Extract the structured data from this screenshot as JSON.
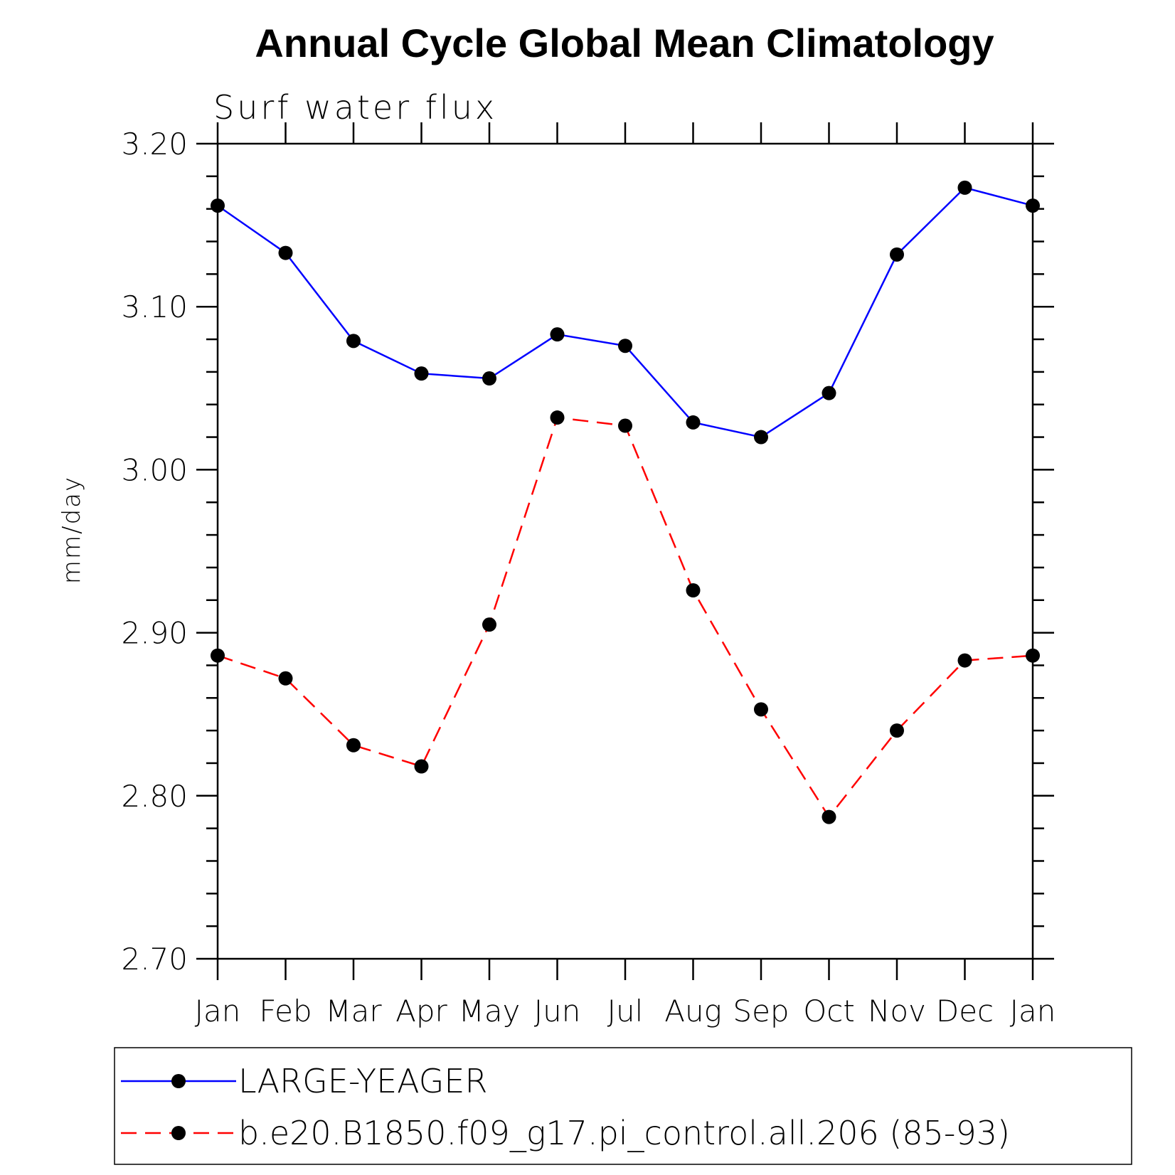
{
  "chart_data": {
    "type": "line",
    "title": "Annual Cycle Global Mean Climatology",
    "subtitle": "Surf water flux",
    "xlabel": "",
    "ylabel": "mm/day",
    "categories": [
      "Jan",
      "Feb",
      "Mar",
      "Apr",
      "May",
      "Jun",
      "Jul",
      "Aug",
      "Sep",
      "Oct",
      "Nov",
      "Dec",
      "Jan"
    ],
    "ylim": [
      2.7,
      3.2
    ],
    "yticks": [
      "2.70",
      "2.80",
      "2.90",
      "3.00",
      "3.10",
      "3.20"
    ],
    "grid": false,
    "legend_position": "bottom",
    "series": [
      {
        "name": "LARGE-YEAGER",
        "color": "#0000ff",
        "dash": "solid",
        "marker": "filled-circle",
        "values": [
          3.162,
          3.133,
          3.079,
          3.059,
          3.056,
          3.083,
          3.076,
          3.029,
          3.02,
          3.047,
          3.132,
          3.173,
          3.162
        ]
      },
      {
        "name": "b.e20.B1850.f09_g17.pi_control.all.206 (85-93)",
        "color": "#ff0000",
        "dash": "dashed",
        "marker": "filled-circle",
        "values": [
          2.886,
          2.872,
          2.831,
          2.818,
          2.905,
          3.032,
          3.027,
          2.926,
          2.853,
          2.787,
          2.84,
          2.883,
          2.886
        ]
      }
    ]
  }
}
